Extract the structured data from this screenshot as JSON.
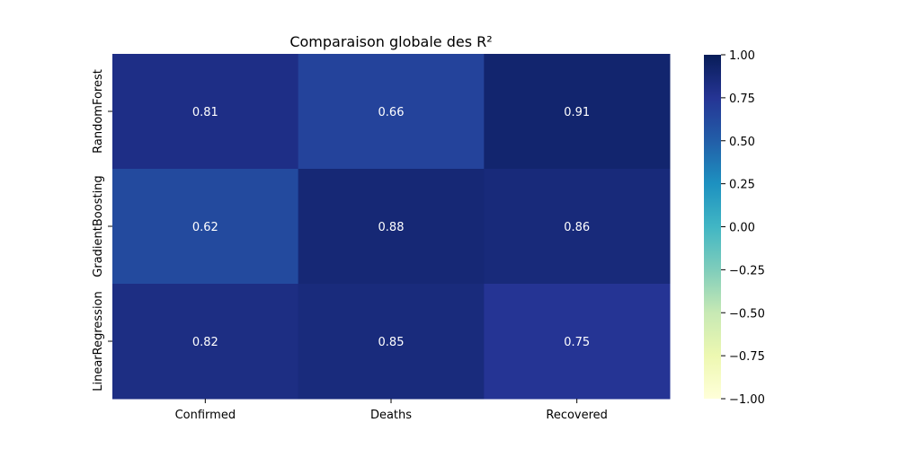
{
  "chart_data": {
    "type": "heatmap",
    "title": "Comparaison globale des R²",
    "xlabel": "",
    "ylabel": "",
    "columns": [
      "Confirmed",
      "Deaths",
      "Recovered"
    ],
    "rows": [
      "RandomForest",
      "GradientBoosting",
      "LinearRegression"
    ],
    "values": [
      [
        0.81,
        0.66,
        0.91
      ],
      [
        0.62,
        0.88,
        0.86
      ],
      [
        0.82,
        0.85,
        0.75
      ]
    ],
    "cell_labels": [
      [
        "0.81",
        "0.66",
        "0.91"
      ],
      [
        "0.62",
        "0.88",
        "0.86"
      ],
      [
        "0.82",
        "0.85",
        "0.75"
      ]
    ],
    "colormap": "YlGnBu",
    "vmin": -1.0,
    "vmax": 1.0,
    "colorbar_ticks": [
      1.0,
      0.75,
      0.5,
      0.25,
      0.0,
      -0.25,
      -0.5,
      -0.75,
      -1.0
    ],
    "colorbar_tick_labels": [
      "1.00",
      "0.75",
      "0.50",
      "0.25",
      "0.00",
      "−0.25",
      "−0.50",
      "−0.75",
      "−1.00"
    ],
    "annotation_color": "#ffffff",
    "axis_color": "#000000"
  }
}
